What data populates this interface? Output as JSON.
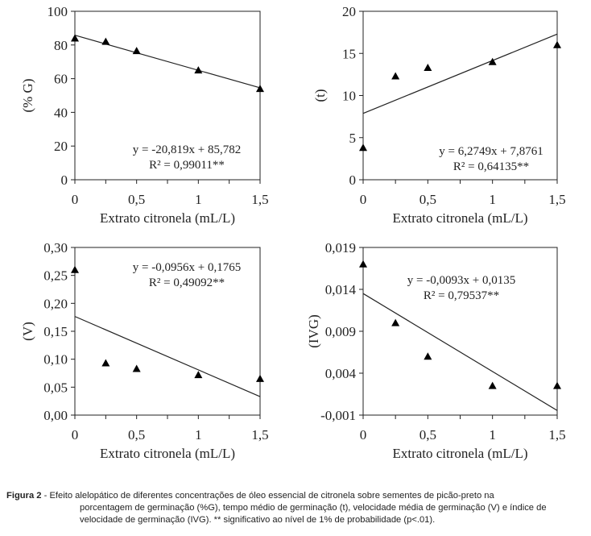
{
  "chart_data": [
    {
      "type": "scatter",
      "ylabel": "(% G)",
      "xlabel": "Extrato citronela (mL/L)",
      "xlim": [
        0,
        1.5
      ],
      "ylim": [
        0,
        100
      ],
      "xticks": [
        {
          "v": 0,
          "label": "0"
        },
        {
          "v": 0.5,
          "label": "0,5"
        },
        {
          "v": 1,
          "label": "1"
        },
        {
          "v": 1.5,
          "label": "1,5"
        }
      ],
      "yticks": [
        {
          "v": 0,
          "label": "0"
        },
        {
          "v": 20,
          "label": "20"
        },
        {
          "v": 40,
          "label": "40"
        },
        {
          "v": 60,
          "label": "60"
        },
        {
          "v": 80,
          "label": "80"
        },
        {
          "v": 100,
          "label": "100"
        }
      ],
      "x": [
        0,
        0.25,
        0.5,
        1,
        1.5
      ],
      "y": [
        84,
        82,
        76.5,
        65,
        54
      ],
      "trend": {
        "slope": -20.819,
        "intercept": 85.782
      },
      "equation": "y = -20,819x + 85,782",
      "r2": "R² = 0,99011**"
    },
    {
      "type": "scatter",
      "ylabel": "(t)",
      "xlabel": "Extrato citronela (mL/L)",
      "xlim": [
        0,
        1.5
      ],
      "ylim": [
        0,
        20
      ],
      "xticks": [
        {
          "v": 0,
          "label": "0"
        },
        {
          "v": 0.5,
          "label": "0,5"
        },
        {
          "v": 1,
          "label": "1"
        },
        {
          "v": 1.5,
          "label": "1,5"
        }
      ],
      "yticks": [
        {
          "v": 0,
          "label": "0"
        },
        {
          "v": 5,
          "label": "5"
        },
        {
          "v": 10,
          "label": "10"
        },
        {
          "v": 15,
          "label": "15"
        },
        {
          "v": 20,
          "label": "20"
        }
      ],
      "x": [
        0,
        0.25,
        0.5,
        1,
        1.5
      ],
      "y": [
        3.8,
        12.3,
        13.3,
        14.0,
        16.0
      ],
      "trend": {
        "slope": 6.2749,
        "intercept": 7.8761
      },
      "equation": "y = 6,2749x + 7,8761",
      "r2": "R² = 0,64135**"
    },
    {
      "type": "scatter",
      "ylabel": "(V)",
      "xlabel": "Extrato citronela (mL/L)",
      "xlim": [
        0,
        1.5
      ],
      "ylim": [
        0,
        0.3
      ],
      "xticks": [
        {
          "v": 0,
          "label": "0"
        },
        {
          "v": 0.5,
          "label": "0,5"
        },
        {
          "v": 1,
          "label": "1"
        },
        {
          "v": 1.5,
          "label": "1,5"
        }
      ],
      "yticks": [
        {
          "v": 0,
          "label": "0,00"
        },
        {
          "v": 0.05,
          "label": "0,05"
        },
        {
          "v": 0.1,
          "label": "0,10"
        },
        {
          "v": 0.15,
          "label": "0,15"
        },
        {
          "v": 0.2,
          "label": "0,20"
        },
        {
          "v": 0.25,
          "label": "0,25"
        },
        {
          "v": 0.3,
          "label": "0,30"
        }
      ],
      "x": [
        0,
        0.25,
        0.5,
        1,
        1.5
      ],
      "y": [
        0.26,
        0.093,
        0.083,
        0.072,
        0.065
      ],
      "trend": {
        "slope": -0.0956,
        "intercept": 0.1765
      },
      "equation": "y = -0,0956x + 0,1765",
      "r2": "R² = 0,49092**"
    },
    {
      "type": "scatter",
      "ylabel": "(IVG)",
      "xlabel": "Extrato citronela (mL/L)",
      "xlim": [
        0,
        1.5
      ],
      "ylim": [
        -0.001,
        0.019
      ],
      "xticks": [
        {
          "v": 0,
          "label": "0"
        },
        {
          "v": 0.5,
          "label": "0,5"
        },
        {
          "v": 1,
          "label": "1"
        },
        {
          "v": 1.5,
          "label": "1,5"
        }
      ],
      "yticks": [
        {
          "v": -0.001,
          "label": "-0,001"
        },
        {
          "v": 0.004,
          "label": "0,004"
        },
        {
          "v": 0.009,
          "label": "0,009"
        },
        {
          "v": 0.014,
          "label": "0,014"
        },
        {
          "v": 0.019,
          "label": "0,019"
        }
      ],
      "x": [
        0,
        0.25,
        0.5,
        1,
        1.5
      ],
      "y": [
        0.017,
        0.01,
        0.006,
        0.0025,
        0.0025
      ],
      "trend": {
        "slope": -0.0093,
        "intercept": 0.0135
      },
      "equation": "y = -0,0093x + 0,0135",
      "r2": "R² = 0,79537**"
    }
  ],
  "caption": {
    "label": "Figura 2",
    "line1": " - Efeito alelopático de diferentes concentrações de óleo essencial de citronela sobre sementes de picão-preto na",
    "line2": "porcentagem de germinação (%G), tempo médio de germinação (t), velocidade média de germinação (V) e índice de",
    "line3": "velocidade de germinação (IVG). ** significativo ao nível de 1% de probabilidade (p<.01)."
  }
}
